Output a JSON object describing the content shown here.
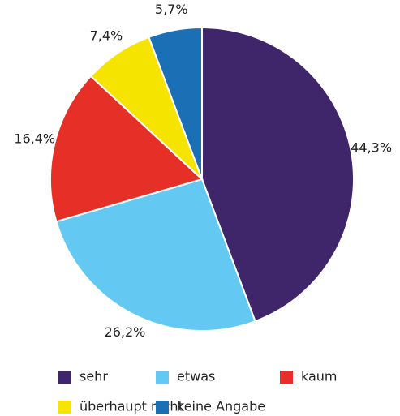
{
  "chart_data": {
    "type": "pie",
    "categories": [
      "sehr",
      "etwas",
      "kaum",
      "überhaupt nicht",
      "keine Angabe"
    ],
    "values": [
      44.3,
      26.2,
      16.4,
      7.4,
      5.7
    ],
    "value_labels": [
      "44,3%",
      "26,2%",
      "16,4%",
      "7,4%",
      "5,7%"
    ],
    "colors": [
      "#3f2569",
      "#63c8f2",
      "#e63027",
      "#f5e400",
      "#1a6fb5"
    ],
    "legend": "bottom"
  }
}
